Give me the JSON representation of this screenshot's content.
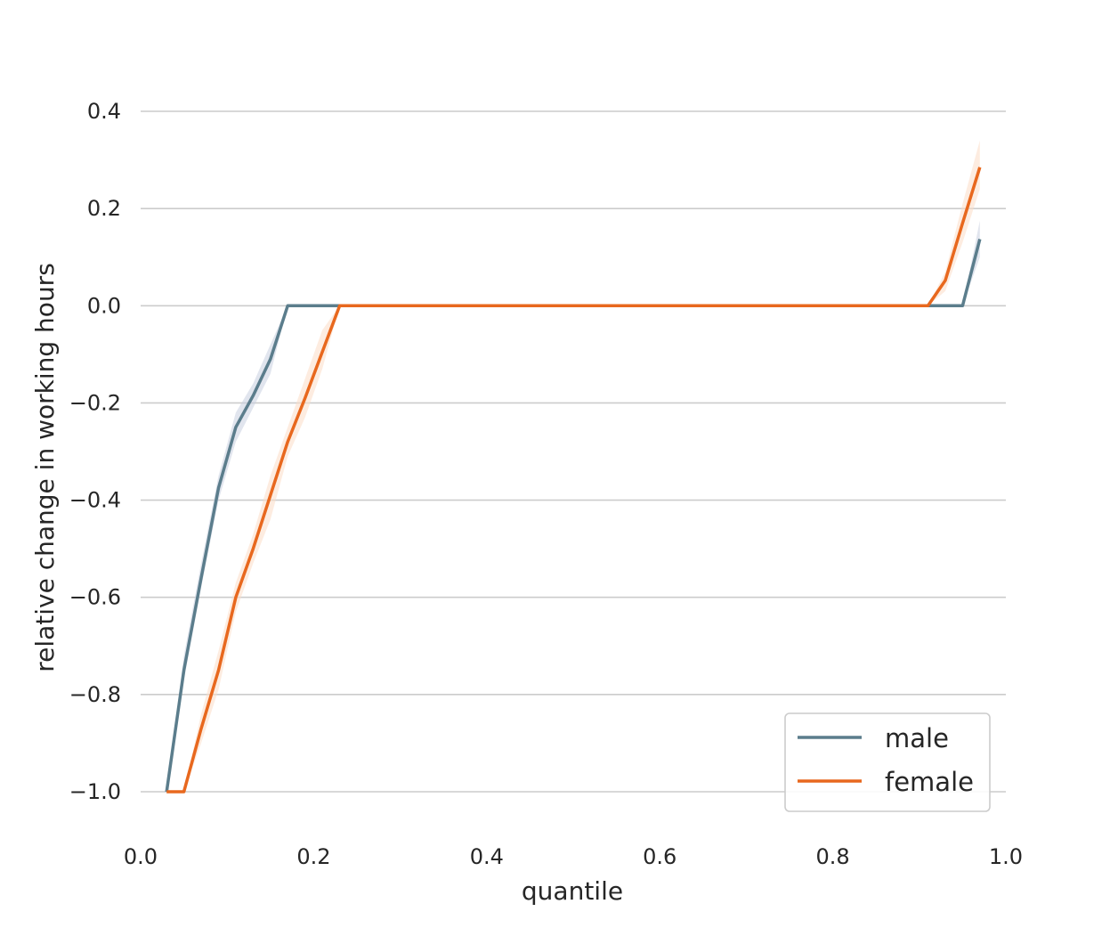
{
  "chart_data": {
    "type": "line",
    "xlabel": "quantile",
    "ylabel": "relative change in working hours",
    "xlim": [
      0.0,
      1.0
    ],
    "ylim": [
      -1.08,
      0.46
    ],
    "xticks": [
      "0.0",
      "0.2",
      "0.4",
      "0.6",
      "0.8",
      "1.0"
    ],
    "yticks": [
      "0.4",
      "0.2",
      "0.0",
      "−0.2",
      "−0.4",
      "−0.6",
      "−0.8",
      "−1.0"
    ],
    "grid": "horizontal",
    "legend_position": "lower-right",
    "series": [
      {
        "name": "male",
        "color": "#5b7d8c",
        "band_color": "#c8d0e0",
        "x": [
          0.03,
          0.05,
          0.07,
          0.09,
          0.11,
          0.13,
          0.15,
          0.17,
          0.19,
          0.21,
          0.23,
          0.25,
          0.3,
          0.4,
          0.5,
          0.6,
          0.7,
          0.8,
          0.87,
          0.89,
          0.91,
          0.93,
          0.95,
          0.97
        ],
        "y": [
          -1.0,
          -0.75,
          -0.56,
          -0.375,
          -0.25,
          -0.185,
          -0.11,
          0.0,
          0.0,
          0.0,
          0.0,
          0.0,
          0.0,
          0.0,
          0.0,
          0.0,
          0.0,
          0.0,
          0.0,
          0.0,
          0.0,
          0.0,
          0.0,
          0.137
        ],
        "lower": [
          -1.0,
          -0.77,
          -0.58,
          -0.4,
          -0.28,
          -0.21,
          -0.14,
          0.0,
          0.0,
          0.0,
          0.0,
          0.0,
          0.0,
          0.0,
          0.0,
          0.0,
          0.0,
          0.0,
          0.0,
          0.0,
          0.0,
          0.0,
          0.0,
          0.1
        ],
        "upper": [
          -1.0,
          -0.72,
          -0.53,
          -0.35,
          -0.22,
          -0.16,
          -0.08,
          0.0,
          0.0,
          0.0,
          0.0,
          0.0,
          0.0,
          0.0,
          0.0,
          0.0,
          0.0,
          0.0,
          0.0,
          0.0,
          0.0,
          0.0,
          0.0,
          0.175
        ]
      },
      {
        "name": "female",
        "color": "#e8681e",
        "band_color": "#fbdcc6",
        "x": [
          0.03,
          0.05,
          0.07,
          0.09,
          0.11,
          0.13,
          0.15,
          0.17,
          0.19,
          0.21,
          0.23,
          0.25,
          0.3,
          0.4,
          0.5,
          0.6,
          0.7,
          0.8,
          0.87,
          0.89,
          0.91,
          0.93,
          0.95,
          0.97
        ],
        "y": [
          -1.0,
          -1.0,
          -0.87,
          -0.75,
          -0.6,
          -0.5,
          -0.39,
          -0.28,
          -0.19,
          -0.095,
          0.0,
          0.0,
          0.0,
          0.0,
          0.0,
          0.0,
          0.0,
          0.0,
          0.0,
          0.0,
          0.0,
          0.052,
          0.17,
          0.285
        ],
        "lower": [
          -1.0,
          -1.0,
          -0.9,
          -0.79,
          -0.63,
          -0.53,
          -0.44,
          -0.31,
          -0.23,
          -0.13,
          0.0,
          0.0,
          0.0,
          0.0,
          0.0,
          0.0,
          0.0,
          0.0,
          0.0,
          0.0,
          0.0,
          0.03,
          0.13,
          0.24
        ],
        "upper": [
          -1.0,
          -1.0,
          -0.84,
          -0.71,
          -0.57,
          -0.47,
          -0.35,
          -0.25,
          -0.15,
          -0.05,
          0.0,
          0.0,
          0.0,
          0.0,
          0.0,
          0.0,
          0.0,
          0.0,
          0.0,
          0.0,
          0.0,
          0.07,
          0.21,
          0.34
        ]
      }
    ]
  }
}
